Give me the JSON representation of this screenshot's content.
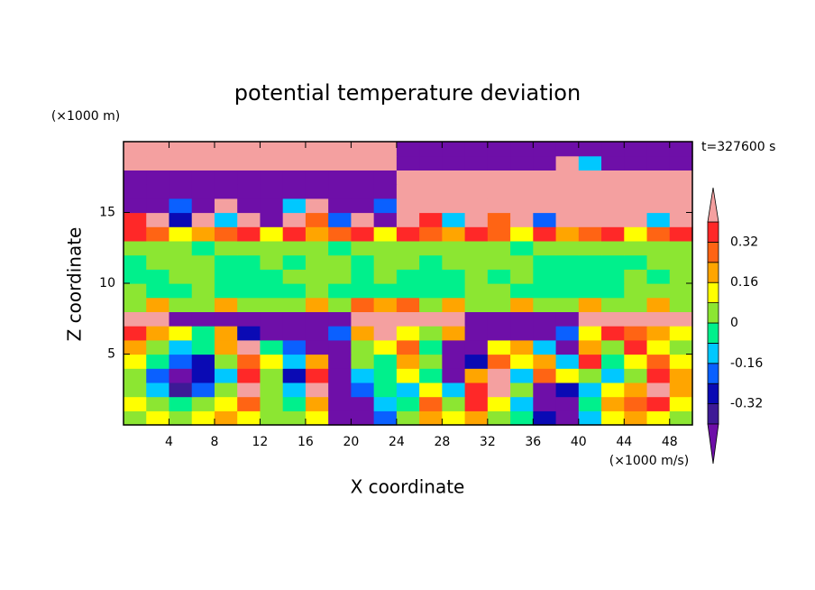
{
  "chart_data": {
    "type": "contour",
    "title": "potential temperature deviation",
    "xlabel": "X coordinate",
    "ylabel": "Z coordinate",
    "xunit": "(×1000 m/s)",
    "yunit": "(×1000 m)",
    "annotation": "t=327600 s",
    "xlim": [
      0,
      50
    ],
    "ylim": [
      0,
      20
    ],
    "xticks": [
      4,
      8,
      12,
      16,
      20,
      24,
      28,
      32,
      36,
      40,
      44,
      48
    ],
    "yticks": [
      5,
      10,
      15
    ],
    "x": [
      1,
      3,
      5,
      7,
      9,
      11,
      13,
      15,
      17,
      19,
      21,
      23,
      25,
      27,
      29,
      31,
      33,
      35,
      37,
      39,
      41,
      43,
      45,
      47,
      49
    ],
    "y": [
      0.5,
      1.5,
      2.5,
      3.5,
      4.5,
      5.5,
      6.5,
      7.5,
      8.5,
      9.5,
      10.5,
      11.5,
      12.5,
      13.5,
      14.5,
      15.5,
      16.5,
      17.5,
      18.5,
      19.5
    ],
    "z": [
      [
        0.04,
        0.12,
        0.04,
        0.12,
        0.2,
        0.12,
        0.04,
        0.04,
        0.12,
        -0.44,
        -0.44,
        -0.2,
        0.04,
        0.2,
        0.12,
        0.2,
        0.04,
        -0.04,
        -0.28,
        -0.44,
        -0.12,
        0.12,
        0.2,
        0.12,
        0.04
      ],
      [
        0.12,
        0.04,
        -0.04,
        0.04,
        0.12,
        0.28,
        0.04,
        -0.04,
        0.2,
        -0.44,
        -0.44,
        -0.12,
        -0.04,
        0.28,
        0.04,
        0.36,
        0.12,
        -0.12,
        -0.44,
        -0.44,
        -0.04,
        0.2,
        0.28,
        0.36,
        0.12
      ],
      [
        0.04,
        -0.12,
        -0.36,
        -0.2,
        0.04,
        0.44,
        0.04,
        -0.12,
        0.44,
        -0.44,
        -0.2,
        -0.04,
        -0.12,
        0.12,
        -0.12,
        0.36,
        0.44,
        0.04,
        -0.44,
        -0.28,
        -0.12,
        0.12,
        0.2,
        0.44,
        0.2
      ],
      [
        0.04,
        -0.2,
        -0.44,
        -0.28,
        -0.12,
        0.36,
        0.04,
        -0.28,
        0.36,
        -0.44,
        -0.12,
        -0.04,
        0.12,
        -0.04,
        -0.44,
        0.2,
        0.44,
        -0.12,
        0.28,
        0.12,
        0.04,
        -0.12,
        0.04,
        0.36,
        0.2
      ],
      [
        0.12,
        -0.04,
        -0.2,
        -0.28,
        0.04,
        0.28,
        0.12,
        -0.12,
        0.2,
        -0.44,
        0.04,
        -0.04,
        0.2,
        0.04,
        -0.44,
        -0.28,
        0.28,
        0.12,
        0.2,
        -0.12,
        0.36,
        -0.04,
        0.12,
        0.28,
        0.12
      ],
      [
        0.2,
        0.04,
        -0.12,
        -0.04,
        0.2,
        0.44,
        -0.04,
        -0.2,
        -0.44,
        -0.44,
        0.04,
        0.12,
        0.28,
        -0.04,
        -0.44,
        -0.44,
        0.12,
        0.2,
        -0.12,
        -0.44,
        0.2,
        0.04,
        0.36,
        0.12,
        0.04
      ],
      [
        0.36,
        0.2,
        0.12,
        -0.04,
        0.2,
        -0.28,
        -0.44,
        -0.44,
        -0.44,
        -0.2,
        0.2,
        0.44,
        0.12,
        0.04,
        0.2,
        -0.44,
        -0.44,
        -0.44,
        -0.44,
        -0.2,
        0.12,
        0.36,
        0.28,
        0.2,
        0.12
      ],
      [
        0.44,
        0.44,
        -0.44,
        -0.44,
        -0.44,
        -0.44,
        -0.44,
        -0.44,
        -0.44,
        -0.44,
        0.44,
        0.44,
        0.44,
        0.44,
        0.44,
        -0.44,
        -0.44,
        -0.44,
        -0.44,
        -0.44,
        0.44,
        0.44,
        0.44,
        0.44,
        0.44
      ],
      [
        0.04,
        0.2,
        0.04,
        0.04,
        0.2,
        0.04,
        0.04,
        0.04,
        0.2,
        0.04,
        0.28,
        0.2,
        0.28,
        0.04,
        0.2,
        0.04,
        0.04,
        0.2,
        0.04,
        0.04,
        0.2,
        0.04,
        0.04,
        0.2,
        0.04
      ],
      [
        0.04,
        -0.04,
        -0.04,
        0.04,
        -0.04,
        -0.04,
        -0.04,
        -0.04,
        0.04,
        -0.04,
        -0.04,
        -0.04,
        -0.04,
        -0.04,
        -0.04,
        0.04,
        0.04,
        -0.04,
        -0.04,
        -0.04,
        -0.04,
        -0.04,
        0.04,
        0.04,
        0.04
      ],
      [
        -0.04,
        -0.04,
        0.04,
        0.04,
        -0.04,
        -0.04,
        -0.04,
        0.04,
        0.04,
        0.04,
        -0.04,
        0.04,
        -0.04,
        -0.04,
        -0.04,
        0.04,
        -0.04,
        0.04,
        -0.04,
        -0.04,
        -0.04,
        -0.04,
        0.04,
        -0.04,
        0.04
      ],
      [
        -0.04,
        0.04,
        0.04,
        0.04,
        -0.04,
        -0.04,
        0.04,
        -0.04,
        0.04,
        0.04,
        -0.04,
        0.04,
        0.04,
        -0.04,
        0.04,
        0.04,
        0.04,
        0.04,
        -0.04,
        -0.04,
        -0.04,
        -0.04,
        -0.04,
        0.04,
        0.04
      ],
      [
        0.04,
        0.04,
        0.04,
        -0.04,
        0.04,
        0.04,
        0.04,
        0.04,
        0.04,
        -0.04,
        0.04,
        0.04,
        0.04,
        0.04,
        0.04,
        0.04,
        0.04,
        -0.04,
        0.04,
        0.04,
        0.04,
        0.04,
        0.04,
        0.04,
        0.04
      ],
      [
        0.36,
        0.28,
        0.12,
        0.2,
        0.28,
        0.36,
        0.12,
        0.36,
        0.2,
        0.28,
        0.36,
        0.12,
        0.36,
        0.28,
        0.2,
        0.36,
        0.28,
        0.12,
        0.36,
        0.2,
        0.28,
        0.36,
        0.12,
        0.28,
        0.36
      ],
      [
        0.36,
        0.44,
        -0.28,
        0.44,
        -0.12,
        0.44,
        -0.44,
        0.44,
        0.28,
        -0.2,
        0.44,
        -0.44,
        0.44,
        0.36,
        -0.12,
        0.44,
        0.28,
        0.44,
        -0.2,
        0.44,
        0.44,
        0.44,
        0.44,
        -0.12,
        0.44
      ],
      [
        -0.44,
        -0.44,
        -0.2,
        -0.44,
        0.44,
        -0.44,
        -0.44,
        -0.12,
        0.44,
        -0.44,
        -0.44,
        -0.2,
        0.44,
        0.44,
        0.44,
        0.44,
        0.44,
        0.44,
        0.44,
        0.44,
        0.44,
        0.44,
        0.44,
        0.44,
        0.44
      ],
      [
        -0.44,
        -0.44,
        -0.44,
        -0.44,
        -0.44,
        -0.44,
        -0.44,
        -0.44,
        -0.44,
        -0.44,
        -0.44,
        -0.44,
        0.44,
        0.44,
        0.44,
        0.44,
        0.44,
        0.44,
        0.44,
        0.44,
        0.44,
        0.44,
        0.44,
        0.44,
        0.44
      ],
      [
        -0.44,
        -0.44,
        -0.44,
        -0.44,
        -0.44,
        -0.44,
        -0.44,
        -0.44,
        -0.44,
        -0.44,
        -0.44,
        -0.44,
        0.44,
        0.44,
        0.44,
        0.44,
        0.44,
        0.44,
        0.44,
        0.44,
        0.44,
        0.44,
        0.44,
        0.44,
        0.44
      ],
      [
        0.44,
        0.44,
        0.44,
        0.44,
        0.44,
        0.44,
        0.44,
        0.44,
        0.44,
        0.44,
        0.44,
        0.44,
        -0.44,
        -0.44,
        -0.44,
        -0.44,
        -0.44,
        -0.44,
        -0.44,
        0.44,
        -0.12,
        -0.44,
        -0.44,
        -0.44,
        -0.44
      ],
      [
        0.44,
        0.44,
        0.44,
        0.44,
        0.44,
        0.44,
        0.44,
        0.44,
        0.44,
        0.44,
        0.44,
        0.44,
        -0.44,
        -0.44,
        -0.44,
        -0.44,
        -0.44,
        -0.44,
        -0.44,
        -0.44,
        -0.44,
        -0.44,
        -0.44,
        -0.44,
        -0.44
      ]
    ],
    "levels": [
      -0.4,
      -0.32,
      -0.24,
      -0.16,
      -0.08,
      0,
      0.08,
      0.16,
      0.24,
      0.32,
      0.4
    ],
    "colors": [
      "#6e0fa8",
      "#3d1a96",
      "#0a0ab4",
      "#0a60ff",
      "#00c8ff",
      "#00f08c",
      "#8ce632",
      "#ffff00",
      "#ffa500",
      "#ff6414",
      "#ff2828",
      "#f4a0a0"
    ],
    "colorbar_ticks": [
      0.32,
      0.16,
      0,
      -0.16,
      -0.32
    ]
  }
}
